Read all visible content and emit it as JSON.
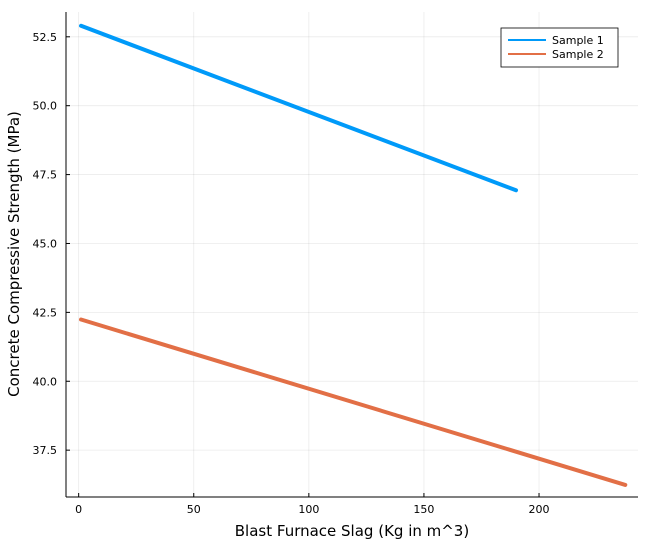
{
  "chart_data": {
    "type": "line",
    "title": "",
    "xlabel": "Blast Furnace Slag (Kg in m^3)",
    "ylabel": "Concrete Compressive Strength (MPa)",
    "xlim": [
      -5.5,
      243
    ],
    "ylim": [
      35.8,
      53.4
    ],
    "xticks": [
      0,
      50,
      100,
      150,
      200
    ],
    "xtick_labels": [
      "0",
      "50",
      "100",
      "150",
      "200"
    ],
    "yticks": [
      37.5,
      40.0,
      42.5,
      45.0,
      47.5,
      50.0,
      52.5
    ],
    "ytick_labels": [
      "37.5",
      "40.0",
      "42.5",
      "45.0",
      "47.5",
      "50.0",
      "52.5"
    ],
    "grid": true,
    "legend": "top-right",
    "series": [
      {
        "name": "Sample 1",
        "color": "#009af9",
        "x": [
          1,
          190
        ],
        "y": [
          52.9,
          46.93
        ]
      },
      {
        "name": "Sample 2",
        "color": "#e26f46",
        "x": [
          1,
          237.5
        ],
        "y": [
          42.24,
          36.24
        ]
      }
    ]
  }
}
